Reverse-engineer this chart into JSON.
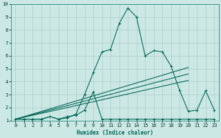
{
  "xlabel": "Humidex (Indice chaleur)",
  "xlim": [
    -0.5,
    23.5
  ],
  "ylim": [
    1,
    10
  ],
  "xticks": [
    0,
    1,
    2,
    3,
    4,
    5,
    6,
    7,
    8,
    9,
    10,
    11,
    12,
    13,
    14,
    15,
    16,
    17,
    18,
    19,
    20,
    21,
    22,
    23
  ],
  "yticks": [
    1,
    2,
    3,
    4,
    5,
    6,
    7,
    8,
    9,
    10
  ],
  "bg_color": "#cce8e4",
  "grid_color": "#aaccca",
  "line_color": "#006655",
  "series1_x": [
    0,
    1,
    2,
    3,
    4,
    5,
    6,
    7,
    8,
    9,
    10,
    11,
    12,
    13,
    14,
    15,
    16,
    17,
    18,
    19,
    20,
    21,
    22,
    23
  ],
  "series1_y": [
    1.1,
    1.1,
    1.1,
    1.1,
    1.3,
    1.1,
    1.2,
    1.5,
    3.0,
    4.7,
    6.3,
    6.5,
    8.5,
    9.7,
    9.0,
    6.0,
    6.4,
    6.3,
    5.2,
    3.3,
    1.7,
    1.8,
    3.3,
    1.8
  ],
  "series2_x": [
    0,
    1,
    2,
    3,
    4,
    5,
    6,
    7,
    8,
    9,
    10,
    11,
    12,
    13,
    14,
    15,
    16,
    17,
    18,
    19,
    20,
    21,
    22,
    23
  ],
  "series2_y": [
    1.1,
    1.1,
    1.1,
    1.1,
    1.3,
    1.1,
    1.3,
    1.4,
    1.8,
    3.2,
    1.1,
    1.1,
    1.1,
    1.1,
    1.1,
    1.1,
    1.1,
    1.1,
    1.1,
    1.1,
    1.1,
    1.1,
    1.1,
    1.1
  ],
  "series3_x": [
    0,
    20
  ],
  "series3_y": [
    1.1,
    5.1
  ],
  "series4_x": [
    0,
    20
  ],
  "series4_y": [
    1.1,
    4.6
  ],
  "series5_x": [
    0,
    20
  ],
  "series5_y": [
    1.1,
    4.1
  ],
  "lw": 0.8,
  "ms": 2.5,
  "tick_fontsize": 5.0,
  "xlabel_fontsize": 5.5
}
